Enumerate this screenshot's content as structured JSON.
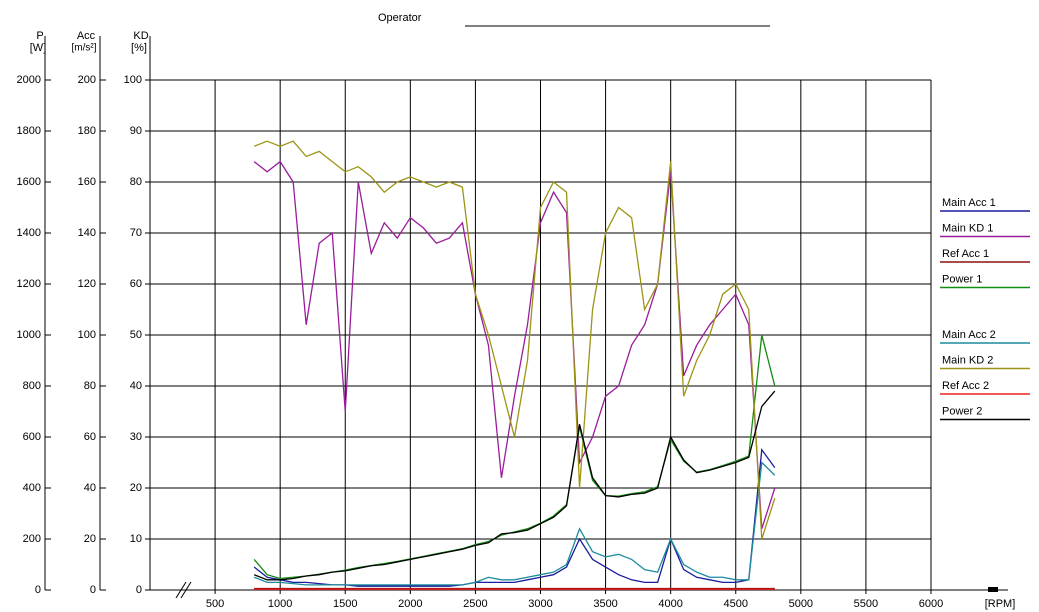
{
  "chart_data": {
    "type": "line",
    "title": "Operator",
    "x_label": "[RPM]",
    "y_label": "KD",
    "y_unit": "[%]",
    "y2_label": "Acc",
    "y2_unit": "[m/s²]",
    "y3_label": "P",
    "y3_unit": "[W]",
    "grid": true,
    "legend": "right",
    "xlim": [
      0,
      6000
    ],
    "xticks": [
      500,
      1000,
      1500,
      2000,
      2500,
      3000,
      3500,
      4000,
      4500,
      5000,
      5500,
      6000
    ],
    "ylim": [
      0,
      100
    ],
    "yticks": [
      0,
      10,
      20,
      30,
      40,
      50,
      60,
      70,
      80,
      90,
      100
    ],
    "y2lim": [
      0,
      200
    ],
    "y2ticks": [
      0,
      20,
      40,
      60,
      80,
      100,
      120,
      140,
      160,
      180,
      200
    ],
    "y3lim": [
      0,
      2000
    ],
    "y3ticks": [
      0,
      200,
      400,
      600,
      800,
      1000,
      1200,
      1400,
      1600,
      1800,
      2000
    ],
    "x": [
      800,
      900,
      1000,
      1100,
      1200,
      1300,
      1400,
      1500,
      1600,
      1700,
      1800,
      1900,
      2000,
      2100,
      2200,
      2300,
      2400,
      2500,
      2600,
      2700,
      2800,
      2900,
      3000,
      3100,
      3200,
      3300,
      3400,
      3500,
      3600,
      3700,
      3800,
      3900,
      4000,
      4100,
      4200,
      4300,
      4400,
      4500,
      4600,
      4700,
      4800
    ],
    "series": [
      {
        "name": "Main Acc 1",
        "color": "#1c1c9c",
        "axis": "y2",
        "values": [
          9,
          5,
          4,
          3,
          3,
          2.5,
          2,
          2,
          1.5,
          1.5,
          1.5,
          1.5,
          1.5,
          1.5,
          1.5,
          1.5,
          2,
          3,
          3,
          3,
          3,
          4,
          5,
          6,
          9,
          20,
          12,
          9,
          6,
          4,
          3,
          3,
          20,
          8,
          5,
          4,
          3,
          3,
          4,
          55,
          48
        ]
      },
      {
        "name": "Main KD 1",
        "color": "#9a1c9c",
        "axis": "y",
        "values": [
          84,
          82,
          84,
          80,
          52,
          68,
          70,
          35,
          80,
          66,
          72,
          69,
          73,
          71,
          68,
          69,
          72,
          58,
          48,
          22,
          38,
          52,
          72,
          78,
          74,
          25,
          30,
          38,
          40,
          48,
          52,
          60,
          82,
          42,
          48,
          52,
          55,
          58,
          52,
          12,
          20
        ]
      },
      {
        "name": "Ref Acc 1",
        "color": "#8c1010",
        "axis": "y2",
        "values": [
          0.6,
          0.6,
          0.6,
          0.6,
          0.6,
          0.6,
          0.6,
          0.6,
          0.6,
          0.6,
          0.6,
          0.6,
          0.6,
          0.6,
          0.6,
          0.6,
          0.6,
          0.6,
          0.6,
          0.6,
          0.6,
          0.6,
          0.6,
          0.6,
          0.6,
          0.6,
          0.6,
          0.6,
          0.6,
          0.6,
          0.6,
          0.6,
          0.6,
          0.6,
          0.6,
          0.6,
          0.6,
          0.6,
          0.6,
          0.6,
          0.6
        ]
      },
      {
        "name": "Power 1",
        "color": "#128c12",
        "axis": "y3",
        "values": [
          120,
          60,
          45,
          50,
          55,
          62,
          70,
          78,
          88,
          96,
          104,
          112,
          122,
          132,
          142,
          152,
          162,
          178,
          190,
          215,
          228,
          240,
          262,
          290,
          335,
          640,
          430,
          370,
          368,
          378,
          385,
          405,
          590,
          505,
          462,
          472,
          488,
          505,
          525,
          1000,
          800
        ]
      },
      {
        "name": "Main Acc 2",
        "color": "#1c8c9c",
        "axis": "y2",
        "values": [
          5,
          3,
          3,
          2.5,
          2,
          2,
          2,
          2,
          2,
          2,
          2,
          2,
          2,
          2,
          2,
          2,
          2,
          3,
          5,
          4,
          4,
          5,
          6,
          7,
          10,
          24,
          15,
          13,
          14,
          12,
          8,
          7,
          20,
          10,
          7,
          5,
          5,
          4,
          4,
          50,
          45
        ]
      },
      {
        "name": "Main KD 2",
        "color": "#9c9414",
        "axis": "y",
        "values": [
          87,
          88,
          87,
          88,
          85,
          86,
          84,
          82,
          83,
          81,
          78,
          80,
          81,
          80,
          79,
          80,
          79,
          58,
          50,
          40,
          30,
          45,
          75,
          80,
          78,
          20,
          55,
          70,
          75,
          73,
          55,
          60,
          84,
          38,
          45,
          50,
          58,
          60,
          55,
          10,
          18
        ]
      },
      {
        "name": "Ref Acc 2",
        "color": "#ee2020",
        "axis": "y2",
        "values": [
          0.3,
          0.3,
          0.3,
          0.3,
          0.3,
          0.3,
          0.3,
          0.3,
          0.3,
          0.3,
          0.3,
          0.3,
          0.3,
          0.3,
          0.3,
          0.3,
          0.3,
          0.3,
          0.3,
          0.3,
          0.3,
          0.3,
          0.3,
          0.3,
          0.3,
          0.3,
          0.3,
          0.3,
          0.3,
          0.3,
          0.3,
          0.3,
          0.3,
          0.3,
          0.3,
          0.3,
          0.3,
          0.3,
          0.3,
          0.3,
          0.3
        ]
      },
      {
        "name": "Power 2",
        "color": "#000000",
        "axis": "y3",
        "values": [
          60,
          40,
          40,
          45,
          55,
          60,
          70,
          75,
          85,
          95,
          100,
          110,
          120,
          130,
          140,
          150,
          160,
          175,
          185,
          220,
          225,
          235,
          260,
          285,
          330,
          650,
          440,
          370,
          365,
          375,
          380,
          400,
          600,
          510,
          460,
          470,
          485,
          500,
          520,
          720,
          780
        ]
      }
    ]
  }
}
